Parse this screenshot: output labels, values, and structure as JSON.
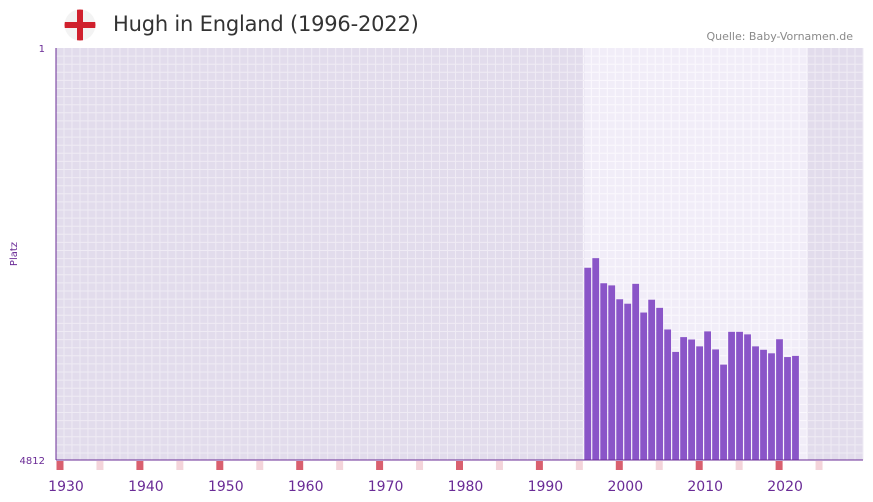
{
  "header": {
    "title": "Hugh in England (1996-2022)",
    "source": "Quelle: Baby-Vornamen.de",
    "flag_icon": "england-flag-icon"
  },
  "chart_data": {
    "type": "bar",
    "title": "Hugh in England (1996-2022)",
    "ylabel": "Platz",
    "y_axis_reversed": true,
    "ylim": [
      1,
      4812
    ],
    "y_ticks": [
      1,
      4812
    ],
    "xlim": [
      1929,
      2029
    ],
    "x_ticks": [
      1930,
      1940,
      1950,
      1960,
      1970,
      1980,
      1990,
      2000,
      2010,
      2020
    ],
    "data_range": [
      1996,
      2022
    ],
    "series": [
      {
        "name": "Hugh",
        "years": [
          1996,
          1997,
          1998,
          1999,
          2000,
          2001,
          2002,
          2003,
          2004,
          2005,
          2006,
          2007,
          2008,
          2009,
          2010,
          2011,
          2012,
          2013,
          2014,
          2015,
          2016,
          2017,
          2018,
          2019,
          2020,
          2021,
          2022
        ],
        "values": [
          2567,
          2455,
          2748,
          2773,
          2935,
          2987,
          2755,
          3090,
          2940,
          3035,
          3288,
          3550,
          3377,
          3405,
          3485,
          3310,
          3521,
          3698,
          3315,
          3315,
          3345,
          3485,
          3525,
          3566,
          3402,
          3610,
          3596
        ]
      }
    ],
    "colors": {
      "bar": "#8a55c8",
      "bg_out": "#e2dcec",
      "bg_in": "#f1edf8",
      "grid_out": "#efebf4",
      "grid_in": "#fbf9fe",
      "axis": "#6a2b96",
      "tick_label": "#6a2b96",
      "decade_marker": "#d9606f",
      "mid_marker": "#f4d4da"
    }
  }
}
